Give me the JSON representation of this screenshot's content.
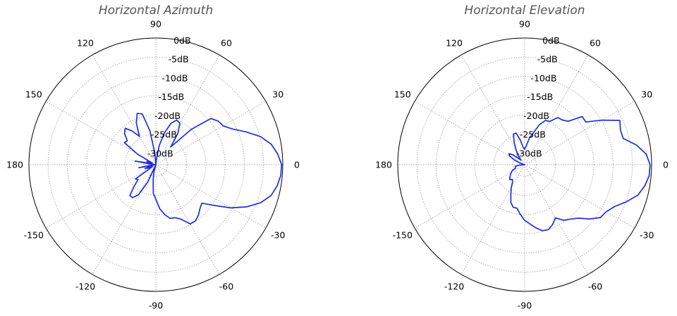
{
  "chart_data": [
    {
      "type": "polar-line",
      "title": "Horizontal Azimuth",
      "angle_labels": [
        "0",
        "30",
        "60",
        "90",
        "120",
        "150",
        "180",
        "-150",
        "-120",
        "-90",
        "-60",
        "-30"
      ],
      "angle_ticks_deg": [
        0,
        30,
        60,
        90,
        120,
        150,
        180,
        -150,
        -120,
        -90,
        -60,
        -30
      ],
      "r_labels": [
        "0dB",
        "-5dB",
        "-10dB",
        "-15dB",
        "-20dB",
        "-25dB",
        "-30dB"
      ],
      "r_ticks_db": [
        0,
        -5,
        -10,
        -15,
        -20,
        -25,
        -30
      ],
      "rlim_db": [
        -33,
        0
      ],
      "grid": true,
      "color": "#1f2fd8",
      "series": [
        {
          "theta_deg": [
            0,
            5,
            10,
            15,
            20,
            25,
            30,
            35,
            40,
            45,
            50,
            55,
            60,
            65,
            70,
            75,
            80,
            85,
            90,
            95,
            100,
            105,
            110,
            115,
            120,
            125,
            130,
            135,
            140,
            145,
            150,
            155,
            160,
            165,
            170,
            175,
            180,
            185,
            190,
            195,
            200,
            205,
            210,
            215,
            220,
            225,
            230,
            235,
            240,
            245,
            250,
            255,
            260,
            265,
            270,
            275,
            280,
            285,
            290,
            295,
            300,
            305,
            310,
            315,
            320,
            325,
            330,
            335,
            340,
            345,
            350,
            355
          ],
          "r_db": [
            -0.3,
            -1.2,
            -2.5,
            -4.8,
            -8,
            -11,
            -12.8,
            -13.2,
            -14.3,
            -20,
            -27,
            -23,
            -20.5,
            -20.2,
            -21.5,
            -24.5,
            -28,
            -32,
            -33,
            -30,
            -24,
            -19.3,
            -18.8,
            -21,
            -24.5,
            -22.3,
            -20.6,
            -21.5,
            -23.3,
            -23,
            -27.5,
            -32,
            -30.5,
            -32,
            -27.5,
            -32,
            -33,
            -32,
            -28.5,
            -32,
            -30,
            -31,
            -32,
            -26.5,
            -27,
            -25,
            -22.5,
            -22.5,
            -24,
            -28,
            -33,
            -31,
            -29,
            -25.5,
            -24,
            -21.5,
            -19.8,
            -18.5,
            -18.3,
            -17.3,
            -15.2,
            -15.1,
            -15.8,
            -16.8,
            -17.4,
            -14.5,
            -10.5,
            -7,
            -4,
            -2,
            -1,
            -0.4
          ]
        }
      ]
    },
    {
      "type": "polar-line",
      "title": "Horizontal Elevation",
      "angle_labels": [
        "0",
        "30",
        "60",
        "90",
        "120",
        "150",
        "180",
        "-150",
        "-120",
        "-90",
        "-60",
        "-30"
      ],
      "angle_ticks_deg": [
        0,
        30,
        60,
        90,
        120,
        150,
        180,
        -150,
        -120,
        -90,
        -60,
        -30
      ],
      "r_labels": [
        "0dB",
        "-5dB",
        "-10dB",
        "-15dB",
        "-20dB",
        "-25dB",
        "-30dB"
      ],
      "r_ticks_db": [
        0,
        -5,
        -10,
        -15,
        -20,
        -25,
        -30
      ],
      "rlim_db": [
        -33,
        0
      ],
      "grid": true,
      "color": "#1f2fd8",
      "series": [
        {
          "theta_deg": [
            0,
            5,
            10,
            15,
            20,
            25,
            30,
            35,
            40,
            45,
            50,
            55,
            60,
            65,
            70,
            75,
            80,
            85,
            90,
            95,
            100,
            105,
            110,
            115,
            120,
            125,
            130,
            135,
            140,
            145,
            150,
            155,
            160,
            165,
            170,
            175,
            180,
            185,
            190,
            195,
            200,
            205,
            210,
            215,
            220,
            225,
            230,
            235,
            240,
            245,
            250,
            255,
            260,
            265,
            270,
            275,
            280,
            285,
            290,
            295,
            300,
            305,
            310,
            315,
            320,
            325,
            330,
            335,
            340,
            345,
            350,
            355
          ],
          "r_db": [
            -0.4,
            -1.3,
            -3.5,
            -6.5,
            -6.5,
            -5.7,
            -9.8,
            -13.6,
            -13.5,
            -17,
            -17.8,
            -18,
            -20,
            -20.3,
            -22,
            -24.5,
            -26,
            -28,
            -29,
            -28.5,
            -26.5,
            -24.5,
            -24.5,
            -26.5,
            -28.5,
            -30,
            -31.5,
            -30.5,
            -29,
            -28,
            -28.5,
            -30,
            -31.5,
            -32.5,
            -33,
            -33,
            -33,
            -31.5,
            -30.5,
            -30.5,
            -30.5,
            -29.5,
            -29,
            -28.5,
            -28,
            -27.5,
            -28,
            -27.5,
            -26,
            -24.5,
            -22.5,
            -21.5,
            -21.5,
            -20,
            -18.5,
            -17.5,
            -16.3,
            -15.2,
            -15,
            -15.8,
            -17,
            -15.3,
            -14.5,
            -13.3,
            -11,
            -9,
            -8.5,
            -7.2,
            -4.8,
            -2.5,
            -1.3,
            -0.5
          ]
        }
      ]
    }
  ]
}
